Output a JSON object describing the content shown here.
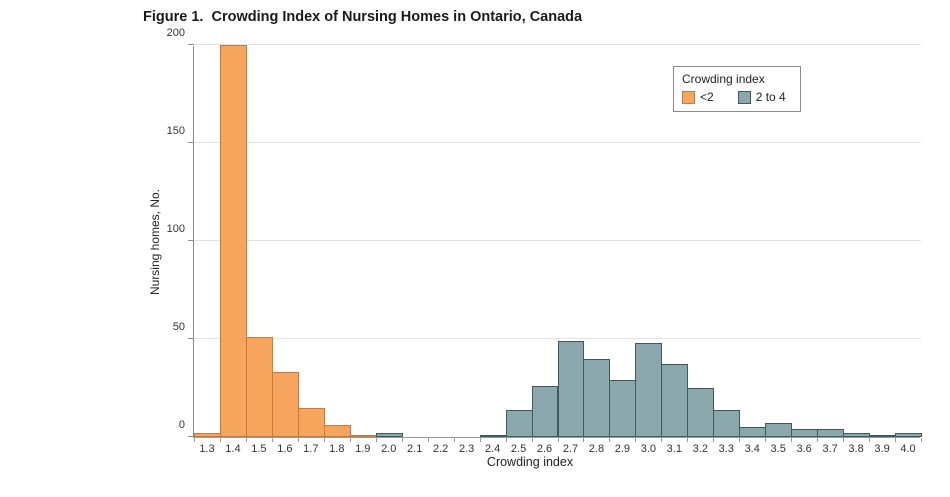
{
  "figure": {
    "title": "Figure 1.  Crowding Index of Nursing Homes in Ontario, Canada"
  },
  "colors": {
    "orange_fill": "#f7a55c",
    "orange_border": "#c67a3d",
    "blue_fill": "#8aa8ab",
    "blue_border": "#3f5a5e",
    "gridline": "#e2e2e2",
    "axis": "#8a8a8a",
    "text": "#222222"
  },
  "chart_data": {
    "type": "bar",
    "subtype": "histogram",
    "title": "Figure 1.  Crowding Index of Nursing Homes in Ontario, Canada",
    "xlabel": "Crowding index",
    "ylabel": "Nursing homes, No.",
    "ylim": [
      0,
      200
    ],
    "yticks": [
      0,
      50,
      100,
      150,
      200
    ],
    "grid": "horizontal",
    "legend_position": "top-right",
    "categories": [
      "1.3",
      "1.4",
      "1.5",
      "1.6",
      "1.7",
      "1.8",
      "1.9",
      "2.0",
      "2.1",
      "2.2",
      "2.3",
      "2.4",
      "2.5",
      "2.6",
      "2.7",
      "2.8",
      "2.9",
      "3.0",
      "3.1",
      "3.2",
      "3.3",
      "3.4",
      "3.5",
      "3.6",
      "3.7",
      "3.8",
      "3.9",
      "4.0"
    ],
    "series": [
      {
        "name": "<2",
        "fill": "#f7a55c",
        "border": "#c67a3d",
        "values": [
          2,
          200,
          51,
          33,
          15,
          6,
          1,
          null,
          null,
          null,
          null,
          null,
          null,
          null,
          null,
          null,
          null,
          null,
          null,
          null,
          null,
          null,
          null,
          null,
          null,
          null,
          null,
          null
        ]
      },
      {
        "name": "2 to 4",
        "fill": "#8aa8ab",
        "border": "#3f5a5e",
        "values": [
          null,
          null,
          null,
          null,
          null,
          null,
          null,
          2,
          0,
          0,
          0,
          1,
          14,
          26,
          49,
          40,
          29,
          48,
          37,
          25,
          14,
          5,
          7,
          4,
          4,
          2,
          1,
          2
        ]
      }
    ],
    "legend": {
      "title": "Crowding index",
      "entries": [
        {
          "label": "<2",
          "color": "#f7a55c",
          "border": "#c67a3d"
        },
        {
          "label": "2 to 4",
          "color": "#8aa8ab",
          "border": "#3f5a5e"
        }
      ]
    }
  }
}
